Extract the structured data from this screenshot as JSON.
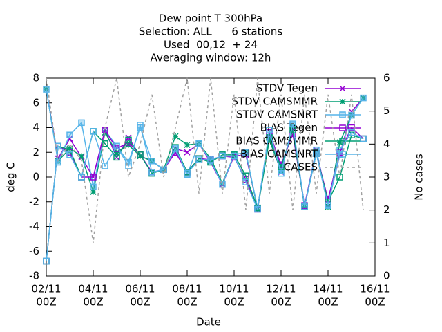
{
  "chart_data": {
    "type": "line",
    "title": [
      "Dew point T 300hPa",
      "Selection: ALL      6 stations",
      "Used  00,12  + 24",
      "Averaging window: 12h"
    ],
    "xlabel": "Date",
    "ylabel": "deg C",
    "y2label": "No cases",
    "x": [
      "02/11 00Z",
      "02/11 12Z",
      "03/11 00Z",
      "03/11 12Z",
      "04/11 00Z",
      "04/11 12Z",
      "05/11 00Z",
      "05/11 12Z",
      "06/11 00Z",
      "06/11 12Z",
      "07/11 00Z",
      "07/11 12Z",
      "08/11 00Z",
      "08/11 12Z",
      "09/11 00Z",
      "09/11 12Z",
      "10/11 00Z",
      "10/11 12Z",
      "11/11 00Z",
      "11/11 12Z",
      "12/11 00Z",
      "12/11 12Z",
      "13/11 00Z",
      "13/11 12Z",
      "14/11 00Z",
      "14/11 12Z",
      "15/11 00Z",
      "15/11 12Z"
    ],
    "xlim": [
      "02/11 00Z",
      "16/11 00Z"
    ],
    "xticks": [
      {
        "value": "02/11 00Z",
        "day": "02/11",
        "time": "00Z"
      },
      {
        "value": "04/11 00Z",
        "day": "04/11",
        "time": "00Z"
      },
      {
        "value": "06/11 00Z",
        "day": "06/11",
        "time": "00Z"
      },
      {
        "value": "08/11 00Z",
        "day": "08/11",
        "time": "00Z"
      },
      {
        "value": "10/11 00Z",
        "day": "10/11",
        "time": "00Z"
      },
      {
        "value": "12/11 00Z",
        "day": "12/11",
        "time": "00Z"
      },
      {
        "value": "14/11 00Z",
        "day": "14/11",
        "time": "00Z"
      },
      {
        "value": "16/11 00Z",
        "day": "16/11",
        "time": "00Z"
      }
    ],
    "ylim": [
      -8,
      8
    ],
    "yticks": [
      -8,
      -6,
      -4,
      -2,
      0,
      2,
      4,
      6,
      8
    ],
    "y2lim": [
      0,
      6
    ],
    "y2ticks": [
      0,
      1,
      2,
      3,
      4,
      5,
      6
    ],
    "legend": "upper right",
    "series": [
      {
        "name": "STDV Tegen",
        "color": "#9400d3",
        "marker": "cross",
        "values": [
          7.1,
          1.5,
          3.1,
          1.6,
          0,
          3.8,
          1.6,
          3.2,
          1.7,
          1.3,
          0.6,
          2.3,
          2.0,
          2.7,
          1.2,
          -0.6,
          1.7,
          1.8,
          -2.5,
          3.2,
          0.4,
          4.0,
          -2.3,
          2.2,
          -2.2,
          1.8,
          5.3,
          6.4
        ]
      },
      {
        "name": "STDV CAMSMMR",
        "color": "#009e73",
        "marker": "star",
        "values": [
          7.1,
          1.3,
          2.3,
          1.7,
          -1.2,
          3.6,
          2.0,
          2.6,
          1.7,
          1.3,
          0.6,
          3.3,
          2.6,
          2.7,
          1.5,
          -0.5,
          1.8,
          2.0,
          -2.6,
          3.0,
          0.5,
          4.1,
          -2.4,
          2.1,
          -2.4,
          2.8,
          5.0,
          6.4
        ]
      },
      {
        "name": "STDV CAMSNRT",
        "color": "#56b4e9",
        "marker": "box",
        "values": [
          7.1,
          1.2,
          3.4,
          4.4,
          -0.8,
          3.8,
          2.5,
          1.2,
          4.0,
          1.3,
          0.6,
          2.2,
          0.2,
          2.7,
          1.3,
          -0.6,
          1.8,
          2.0,
          -2.5,
          3.5,
          0.5,
          4.2,
          -2.4,
          2.2,
          -2.2,
          1.8,
          5.0,
          6.4
        ]
      },
      {
        "name": "BIAS Tegen",
        "color": "#9400d3",
        "marker": "square",
        "values": [
          -6.8,
          2.5,
          2.0,
          0,
          0,
          3.8,
          2.3,
          2.8,
          1.8,
          0.4,
          0.6,
          2.0,
          0.4,
          1.5,
          1.4,
          1.7,
          1.6,
          -0.2,
          -2.6,
          3.6,
          1.0,
          3.5,
          -2.3,
          1.9,
          -1.8,
          2.0,
          4.0,
          3.1
        ]
      },
      {
        "name": "BIAS CAMSMMR",
        "color": "#009e73",
        "marker": "square",
        "values": [
          -6.8,
          2.5,
          2.2,
          0,
          3.7,
          2.7,
          1.6,
          3.0,
          1.8,
          0.3,
          0.6,
          2.4,
          0.4,
          1.5,
          1.2,
          1.8,
          1.8,
          0.1,
          -2.5,
          3.2,
          0.8,
          3.8,
          -2.4,
          1.9,
          -2.0,
          0,
          3.4,
          3.1
        ]
      },
      {
        "name": "BIAS CAMSNRT",
        "color": "#56b4e9",
        "marker": "square",
        "values": [
          -6.8,
          2.5,
          1.8,
          0,
          3.7,
          0.9,
          2.5,
          0.9,
          4.2,
          0.4,
          0.6,
          2.3,
          0.3,
          1.4,
          1.4,
          1.7,
          1.7,
          -0.4,
          -2.6,
          3.8,
          0.3,
          4.3,
          -2.4,
          1.9,
          -2.3,
          2.2,
          3.6,
          3.1
        ]
      },
      {
        "name": "CASES",
        "color": "#a0a0a0",
        "axis": "y2",
        "dashed": true,
        "values": [
          6,
          3.5,
          4,
          3.5,
          1,
          4.5,
          6,
          3,
          4,
          5.5,
          3,
          4.5,
          6,
          2.5,
          6,
          2.5,
          5.5,
          2,
          6,
          2.5,
          5.5,
          2,
          5.5,
          2.5,
          5.5,
          3,
          5.5,
          2
        ]
      }
    ]
  }
}
